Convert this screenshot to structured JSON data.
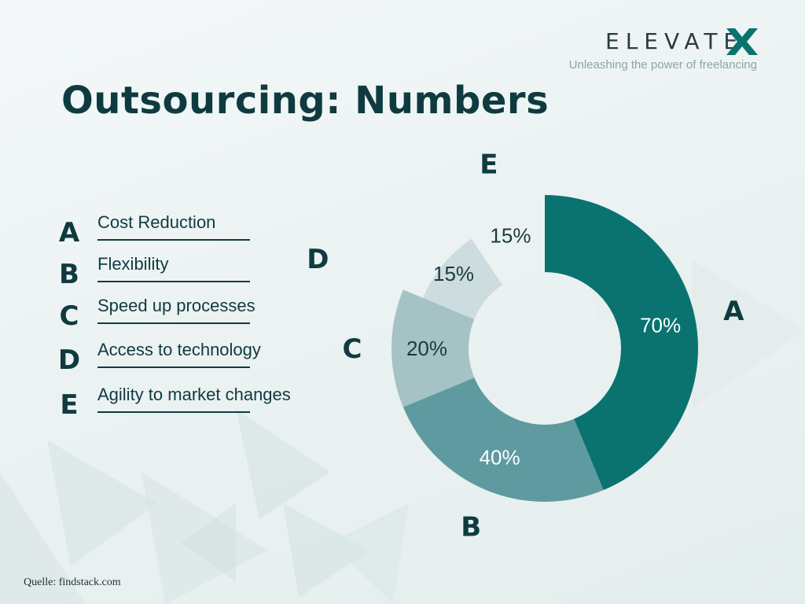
{
  "brand": {
    "name": "ELEVATE",
    "tagline": "Unleashing the power of freelancing",
    "accent_color": "#0a7370"
  },
  "title": "Outsourcing: Numbers",
  "legend": [
    {
      "letter": "A",
      "label": "Cost Reduction"
    },
    {
      "letter": "B",
      "label": "Flexibility"
    },
    {
      "letter": "C",
      "label": "Speed up processes"
    },
    {
      "letter": "D",
      "label": "Access to technology"
    },
    {
      "letter": "E",
      "label": "Agility to market changes"
    }
  ],
  "source": "Quelle: findstack.com",
  "chart_data": {
    "type": "pie",
    "style": "donut",
    "categories": [
      "A",
      "B",
      "C",
      "D",
      "E"
    ],
    "values": [
      70,
      40,
      20,
      15,
      15
    ],
    "value_labels": [
      "70%",
      "40%",
      "20%",
      "15%",
      "15%"
    ],
    "colors": [
      "#0a7370",
      "#5f9aa0",
      "#a5c2c5",
      "#cddcde",
      "none"
    ],
    "label_colors": [
      "#ffffff",
      "#ffffff",
      "#1b3a3f",
      "#1b3a3f",
      "#1b3a3f"
    ],
    "title": "",
    "legend": "left"
  }
}
